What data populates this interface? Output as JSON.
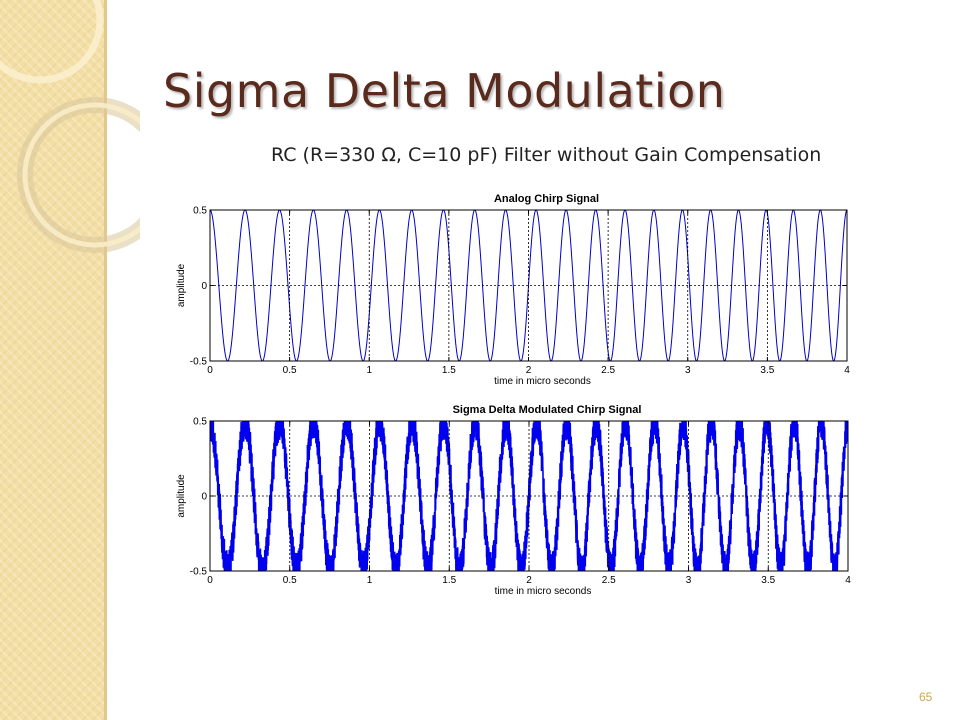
{
  "slide": {
    "title": "Sigma Delta Modulation",
    "subtitle": "RC (R=330 Ω, C=10 pF) Filter without Gain Compensation",
    "page_number": "65",
    "title_color": "#5a2a1c",
    "sidebar_color": "#f3dfa6"
  },
  "chart_data": [
    {
      "type": "line",
      "title": "Analog Chirp Signal",
      "xlabel": "time in micro seconds",
      "ylabel": "amplitude",
      "xlim": [
        0,
        4
      ],
      "ylim": [
        -0.5,
        0.5
      ],
      "xticks": [
        "0",
        "0.5",
        "1",
        "1.5",
        "2",
        "2.5",
        "3",
        "3.5",
        "4"
      ],
      "yticks": [
        "-0.5",
        "0",
        "0.5"
      ],
      "series": [
        {
          "signal": "chirp",
          "amplitude": 0.5,
          "f_start_mhz": 4.5,
          "f_end_mhz": 6.0,
          "color": "#0000cc"
        }
      ],
      "reference_lines": {
        "horizontal": [
          0
        ],
        "vertical": [
          0.5,
          1.0,
          1.5,
          2.0,
          2.5,
          3.0,
          3.5
        ],
        "style": "dashed"
      },
      "grid": false
    },
    {
      "type": "line",
      "title": "Sigma Delta Modulated Chirp Signal",
      "xlabel": "time in micro seconds",
      "ylabel": "amplitude",
      "xlim": [
        0,
        4
      ],
      "ylim": [
        -0.5,
        0.5
      ],
      "xticks": [
        "0",
        "0.5",
        "1",
        "1.5",
        "2",
        "2.5",
        "3",
        "3.5",
        "4"
      ],
      "yticks": [
        "-0.5",
        "0",
        "0.5"
      ],
      "series": [
        {
          "signal": "sigma-delta modulated chirp",
          "amplitude": 0.5,
          "f_start_mhz": 4.5,
          "f_end_mhz": 6.0,
          "color": "#0000ee"
        }
      ],
      "reference_lines": {
        "horizontal": [
          0
        ],
        "vertical": [
          0.5,
          1.0,
          1.5,
          2.0,
          2.5,
          3.0,
          3.5
        ],
        "style": "dashed"
      },
      "grid": false
    }
  ]
}
